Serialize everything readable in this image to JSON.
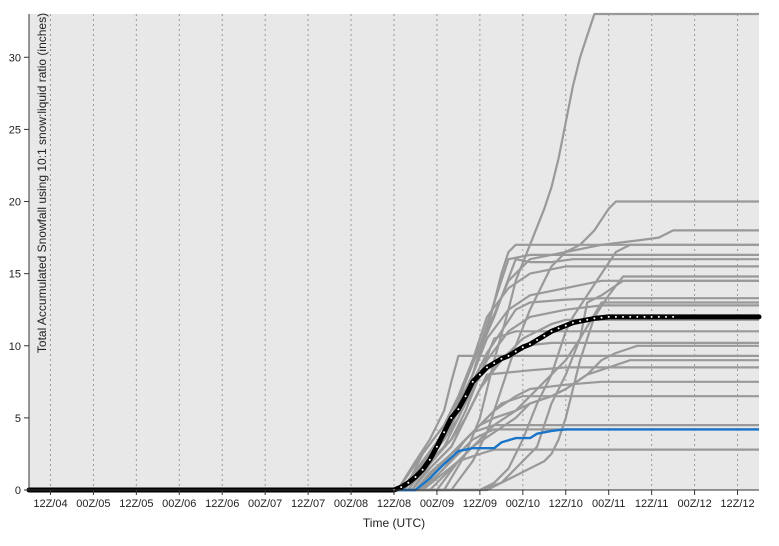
{
  "chart_data": {
    "type": "line",
    "title": "",
    "xlabel": "Time (UTC)",
    "ylabel": "Total Accumulated Snowfall using 10:1 snow:liquid ratio (inches)",
    "xlim_hours": [
      0,
      204
    ],
    "ylim": [
      0,
      33
    ],
    "x_ticks": [
      {
        "label": "12Z/04",
        "hour": 6
      },
      {
        "label": "00Z/05",
        "hour": 18
      },
      {
        "label": "12Z/05",
        "hour": 30
      },
      {
        "label": "00Z/06",
        "hour": 42
      },
      {
        "label": "12Z/06",
        "hour": 54
      },
      {
        "label": "00Z/07",
        "hour": 66
      },
      {
        "label": "12Z/07",
        "hour": 78
      },
      {
        "label": "00Z/08",
        "hour": 90
      },
      {
        "label": "12Z/08",
        "hour": 102
      },
      {
        "label": "00Z/09",
        "hour": 114
      },
      {
        "label": "12Z/09",
        "hour": 126
      },
      {
        "label": "00Z/10",
        "hour": 138
      },
      {
        "label": "12Z/10",
        "hour": 150
      },
      {
        "label": "00Z/11",
        "hour": 162
      },
      {
        "label": "12Z/11",
        "hour": 174
      },
      {
        "label": "00Z/12",
        "hour": 186
      },
      {
        "label": "12Z/12",
        "hour": 198
      }
    ],
    "y_ticks": [
      0,
      5,
      10,
      15,
      20,
      25,
      30
    ],
    "grid": {
      "vertical": "dotted",
      "horizontal": false
    },
    "colors": {
      "background": "#e8e8e8",
      "member": "#999999",
      "mean": "#000000",
      "highlight": "#1a75c9"
    },
    "members": [
      {
        "x": [
          0,
          103,
          108,
          112,
          116,
          118,
          120,
          126,
          130,
          136,
          150,
          204
        ],
        "y": [
          0,
          0,
          2,
          3.5,
          5.5,
          7.5,
          9.3,
          9.3,
          9.3,
          9.3,
          9.3,
          9.3
        ]
      },
      {
        "x": [
          0,
          103,
          110,
          116,
          120,
          124,
          128,
          132,
          134,
          136,
          150,
          204
        ],
        "y": [
          0,
          0,
          2.5,
          4.5,
          6.5,
          9,
          11,
          15,
          16.5,
          17,
          17,
          17
        ]
      },
      {
        "x": [
          0,
          104,
          110,
          116,
          120,
          124,
          128,
          134,
          140,
          150,
          160,
          170,
          176,
          180,
          204
        ],
        "y": [
          0,
          0,
          1.5,
          3,
          5,
          8,
          11,
          14.5,
          16,
          16.5,
          17,
          17.3,
          17.5,
          18,
          18
        ]
      },
      {
        "x": [
          0,
          104,
          110,
          114,
          118,
          122,
          126,
          130,
          134,
          140,
          150,
          204
        ],
        "y": [
          0,
          0,
          1.8,
          3,
          5,
          7.5,
          10,
          13,
          16,
          16.3,
          16.3,
          16.3
        ]
      },
      {
        "x": [
          0,
          104,
          110,
          116,
          120,
          124,
          126,
          130,
          136,
          140,
          146,
          152,
          160,
          204
        ],
        "y": [
          0,
          0,
          2,
          3.5,
          5.5,
          8,
          9.7,
          12,
          16,
          15.8,
          15.8,
          16,
          16,
          16
        ]
      },
      {
        "x": [
          0,
          105,
          110,
          116,
          120,
          124,
          128,
          134,
          140,
          150,
          160,
          204
        ],
        "y": [
          0,
          0,
          2.5,
          4.5,
          6.5,
          9,
          12,
          14,
          15,
          15.5,
          15.5,
          15.5
        ]
      },
      {
        "x": [
          0,
          105,
          110,
          116,
          120,
          124,
          128,
          134,
          140,
          150,
          160,
          204
        ],
        "y": [
          0,
          0,
          2,
          4,
          6,
          8,
          10.5,
          12.5,
          13.5,
          14,
          14.5,
          14.5
        ]
      },
      {
        "x": [
          0,
          106,
          110,
          116,
          120,
          124,
          128,
          132,
          136,
          140,
          150,
          160,
          170,
          204
        ],
        "y": [
          0,
          0,
          1.5,
          3.5,
          5.5,
          7.5,
          9.5,
          11,
          12.5,
          13,
          13.2,
          13.3,
          13.3,
          13.3
        ]
      },
      {
        "x": [
          0,
          106,
          110,
          116,
          120,
          124,
          128,
          134,
          140,
          150,
          160,
          204
        ],
        "y": [
          0,
          0,
          1.8,
          3.5,
          5,
          7,
          9,
          11,
          12,
          12.5,
          12.8,
          12.8
        ]
      },
      {
        "x": [
          0,
          106,
          112,
          118,
          122,
          126,
          132,
          138,
          146,
          150,
          204
        ],
        "y": [
          0,
          0,
          2,
          3.5,
          5,
          7,
          9,
          10.5,
          11.5,
          11.8,
          11.8
        ]
      },
      {
        "x": [
          0,
          107,
          112,
          118,
          122,
          126,
          130,
          136,
          150,
          204
        ],
        "y": [
          0,
          0,
          1.8,
          3.5,
          5.5,
          8,
          10.5,
          11,
          11,
          11
        ]
      },
      {
        "x": [
          0,
          107,
          112,
          118,
          122,
          126,
          130,
          134,
          138,
          146,
          150,
          204
        ],
        "y": [
          0,
          0,
          1.5,
          3,
          5,
          7,
          8.5,
          9.5,
          10,
          10.2,
          10.2,
          10.2
        ]
      },
      {
        "x": [
          0,
          107,
          112,
          118,
          122,
          126,
          128,
          140,
          150,
          204
        ],
        "y": [
          0,
          0,
          1.5,
          3,
          5,
          7,
          8,
          8.3,
          8.5,
          8.5
        ]
      },
      {
        "x": [
          0,
          108,
          112,
          118,
          124,
          130,
          136,
          140,
          150,
          160,
          204
        ],
        "y": [
          0,
          0,
          1.2,
          2.5,
          4,
          5.5,
          6.5,
          7,
          7.3,
          7.5,
          7.5
        ]
      },
      {
        "x": [
          0,
          108,
          114,
          120,
          126,
          132,
          138,
          146,
          150,
          160,
          204
        ],
        "y": [
          0,
          0,
          1.5,
          3,
          4.5,
          6,
          6.5,
          6.5,
          6.5,
          6.5,
          6.5
        ]
      },
      {
        "x": [
          0,
          108,
          114,
          120,
          124,
          130,
          140,
          150,
          160,
          204
        ],
        "y": [
          0,
          0,
          1.5,
          3,
          4,
          4.5,
          4.5,
          4.5,
          4.5,
          4.5
        ]
      },
      {
        "x": [
          0,
          109,
          114,
          120,
          124,
          128,
          130,
          140,
          150,
          160,
          204
        ],
        "y": [
          0,
          0,
          1,
          2.5,
          3.5,
          4,
          4.2,
          4.2,
          4.2,
          4.2,
          4.2
        ]
      },
      {
        "x": [
          0,
          110,
          116,
          120,
          126,
          130,
          140,
          150,
          160,
          204
        ],
        "y": [
          0,
          0,
          1.2,
          2,
          2.5,
          2.8,
          2.8,
          2.8,
          2.8,
          2.8
        ]
      },
      {
        "x": [
          0,
          110,
          116,
          122,
          126,
          130,
          136,
          140,
          146,
          150,
          156,
          162,
          168,
          204
        ],
        "y": [
          0,
          0,
          1.5,
          3.5,
          4.5,
          5,
          5.5,
          6,
          6.5,
          7,
          8,
          8.5,
          9,
          9
        ]
      },
      {
        "x": [
          0,
          112,
          118,
          124,
          130,
          136,
          140,
          146,
          150,
          156,
          160,
          164,
          170,
          204
        ],
        "y": [
          0,
          0,
          1.5,
          3,
          4,
          5,
          6,
          6.5,
          7,
          8,
          9,
          9.5,
          10,
          10
        ]
      },
      {
        "x": [
          0,
          114,
          120,
          126,
          130,
          136,
          140,
          144,
          150,
          154,
          160,
          204
        ],
        "y": [
          0,
          0,
          2,
          3.5,
          4.5,
          5.5,
          6.5,
          7.5,
          9,
          10.5,
          13,
          13
        ]
      },
      {
        "x": [
          0,
          122,
          128,
          132,
          136,
          140,
          142,
          146,
          150,
          154,
          156,
          160,
          166,
          204
        ],
        "y": [
          0,
          0,
          0,
          0.5,
          1.5,
          2.5,
          3,
          6,
          8,
          10.5,
          13,
          13.5,
          14.5,
          14.5
        ]
      },
      {
        "x": [
          0,
          126,
          130,
          134,
          138,
          142,
          146,
          148,
          150,
          152,
          156,
          160,
          164,
          168,
          170,
          176,
          204
        ],
        "y": [
          0,
          0,
          0.5,
          1.5,
          3.5,
          6,
          8,
          9.5,
          11,
          12,
          13.5,
          15,
          16.5,
          17,
          17,
          17,
          17
        ]
      },
      {
        "x": [
          0,
          126,
          132,
          136,
          140,
          144,
          146,
          148,
          150,
          152,
          154,
          158,
          162,
          166,
          204
        ],
        "y": [
          0,
          0,
          0.5,
          1,
          1.5,
          2,
          2.5,
          3.5,
          5,
          7,
          9,
          12,
          13.5,
          14.8,
          14.8
        ]
      },
      {
        "x": [
          0,
          116,
          122,
          126,
          130,
          134,
          136,
          140,
          144,
          146,
          148,
          150,
          152,
          154,
          156,
          158,
          162,
          166,
          170,
          174,
          204
        ],
        "y": [
          0,
          0,
          2.5,
          5,
          9,
          12.5,
          14.5,
          17,
          19.5,
          21,
          23,
          25.5,
          28,
          30,
          31.5,
          33,
          33,
          33,
          33,
          33,
          33
        ]
      },
      {
        "x": [
          0,
          118,
          124,
          128,
          132,
          136,
          140,
          144,
          146,
          150,
          154,
          158,
          162,
          164,
          168,
          204
        ],
        "y": [
          0,
          0,
          2,
          4,
          7,
          10,
          12.5,
          14.5,
          15.5,
          16.5,
          17,
          18,
          19.5,
          20,
          20,
          20
        ]
      }
    ],
    "highlight": {
      "x": [
        0,
        108,
        112,
        116,
        120,
        124,
        128,
        130,
        132,
        136,
        138,
        140,
        142,
        144,
        146,
        148,
        150,
        204
      ],
      "y": [
        0,
        0,
        0.8,
        1.8,
        2.7,
        2.9,
        2.9,
        2.9,
        3.3,
        3.6,
        3.6,
        3.6,
        3.9,
        4,
        4.1,
        4.15,
        4.2,
        4.2
      ]
    },
    "mean": {
      "x": [
        0,
        102,
        104,
        106,
        108,
        110,
        112,
        114,
        116,
        118,
        120,
        122,
        124,
        126,
        128,
        130,
        132,
        134,
        136,
        138,
        140,
        142,
        144,
        146,
        148,
        150,
        152,
        154,
        156,
        158,
        160,
        162,
        164,
        166,
        168,
        170,
        172,
        174,
        176,
        178,
        180,
        186,
        192,
        198,
        204
      ],
      "y": [
        0,
        0,
        0.2,
        0.5,
        0.9,
        1.4,
        2.1,
        3,
        4,
        5,
        5.6,
        6.5,
        7.5,
        8,
        8.5,
        8.8,
        9.1,
        9.3,
        9.6,
        9.9,
        10.1,
        10.4,
        10.7,
        11,
        11.2,
        11.4,
        11.6,
        11.7,
        11.8,
        11.9,
        11.95,
        12,
        12,
        12,
        12,
        12,
        12,
        12,
        12,
        12,
        12,
        12,
        12,
        12,
        12
      ]
    }
  }
}
